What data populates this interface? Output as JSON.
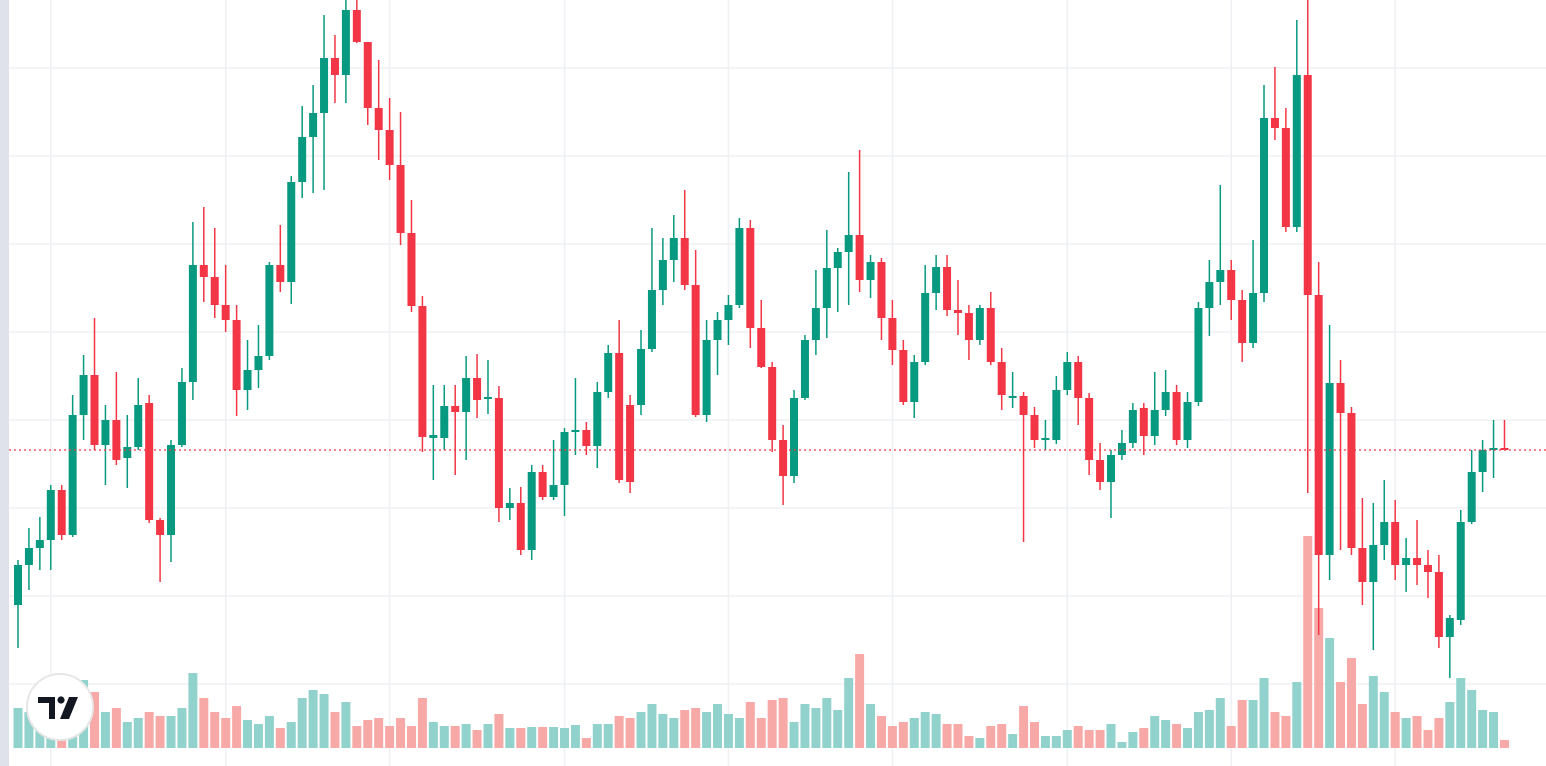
{
  "chart_data": {
    "type": "candlestick",
    "open": [
      161,
      201,
      218,
      226,
      276,
      231,
      351,
      391,
      321,
      346,
      308,
      319,
      363,
      246,
      231,
      321,
      384,
      501,
      489,
      461,
      446,
      376,
      396,
      410,
      501,
      484,
      584,
      629,
      653,
      708,
      691,
      756,
      724,
      658,
      636,
      601,
      533,
      460,
      328,
      328,
      360,
      354,
      388,
      367,
      368,
      258,
      263,
      216,
      294,
      269,
      281,
      334,
      336,
      320,
      374,
      413,
      361,
      361,
      417,
      476,
      506,
      528,
      481,
      351,
      426,
      446,
      461,
      538,
      438,
      399,
      326,
      290,
      368,
      426,
      458,
      498,
      514,
      531,
      486,
      504,
      448,
      416,
      364,
      404,
      473,
      499,
      456,
      453,
      426,
      458,
      404,
      368,
      370,
      351,
      326,
      326,
      376,
      404,
      368,
      306,
      284,
      311,
      323,
      358,
      330,
      356,
      374,
      326,
      364,
      458,
      484,
      496,
      466,
      423,
      473,
      648,
      638,
      539,
      691,
      471,
      211,
      383,
      353,
      218,
      184,
      221,
      244,
      201,
      208,
      201,
      194,
      129,
      146,
      244,
      294,
      316,
      318
    ],
    "high": [
      206,
      238,
      249,
      281,
      281,
      371,
      411,
      448,
      361,
      394,
      351,
      388,
      371,
      248,
      326,
      398,
      544,
      559,
      538,
      501,
      461,
      426,
      441,
      504,
      541,
      590,
      660,
      681,
      751,
      731,
      766,
      766,
      724,
      706,
      668,
      654,
      566,
      470,
      381,
      381,
      381,
      410,
      412,
      406,
      380,
      278,
      279,
      301,
      301,
      326,
      338,
      388,
      344,
      384,
      421,
      446,
      371,
      436,
      538,
      528,
      551,
      576,
      516,
      446,
      454,
      471,
      548,
      546,
      466,
      404,
      341,
      376,
      431,
      496,
      536,
      518,
      594,
      616,
      511,
      508,
      466,
      426,
      411,
      501,
      511,
      511,
      486,
      461,
      461,
      474,
      418,
      394,
      374,
      359,
      346,
      390,
      414,
      410,
      373,
      323,
      316,
      336,
      363,
      363,
      394,
      396,
      381,
      374,
      464,
      506,
      581,
      506,
      476,
      526,
      681,
      699,
      658,
      746,
      766,
      504,
      441,
      406,
      359,
      268,
      263,
      286,
      266,
      228,
      246,
      216,
      211,
      151,
      256,
      316,
      326,
      346,
      346
    ],
    "low": [
      118,
      176,
      196,
      196,
      226,
      229,
      326,
      316,
      281,
      301,
      278,
      316,
      243,
      184,
      204,
      319,
      366,
      464,
      448,
      434,
      350,
      356,
      378,
      406,
      474,
      462,
      568,
      573,
      576,
      663,
      663,
      723,
      641,
      606,
      586,
      521,
      454,
      314,
      286,
      316,
      291,
      306,
      348,
      352,
      244,
      246,
      211,
      206,
      266,
      266,
      250,
      311,
      311,
      298,
      368,
      283,
      273,
      351,
      414,
      461,
      484,
      476,
      349,
      344,
      391,
      421,
      458,
      418,
      398,
      314,
      261,
      283,
      366,
      411,
      428,
      454,
      461,
      474,
      468,
      426,
      401,
      361,
      348,
      401,
      456,
      450,
      431,
      406,
      421,
      401,
      356,
      358,
      224,
      318,
      316,
      322,
      371,
      341,
      291,
      276,
      248,
      306,
      318,
      311,
      321,
      350,
      321,
      318,
      360,
      430,
      461,
      446,
      404,
      418,
      464,
      626,
      534,
      534,
      273,
      131,
      186,
      216,
      211,
      161,
      116,
      206,
      186,
      174,
      181,
      168,
      118,
      88,
      141,
      242,
      274,
      288,
      316
    ],
    "close": [
      201,
      218,
      226,
      276,
      231,
      351,
      391,
      321,
      346,
      306,
      319,
      361,
      246,
      231,
      321,
      384,
      501,
      489,
      461,
      446,
      376,
      396,
      410,
      501,
      484,
      584,
      629,
      653,
      708,
      691,
      756,
      724,
      658,
      636,
      601,
      533,
      460,
      329,
      331,
      360,
      354,
      388,
      366,
      369,
      258,
      263,
      216,
      294,
      269,
      281,
      334,
      336,
      320,
      374,
      413,
      286,
      284,
      417,
      476,
      506,
      528,
      481,
      351,
      426,
      446,
      461,
      538,
      438,
      399,
      326,
      290,
      368,
      426,
      458,
      498,
      514,
      531,
      486,
      504,
      448,
      416,
      364,
      404,
      473,
      499,
      456,
      453,
      426,
      458,
      404,
      371,
      370,
      351,
      326,
      328,
      376,
      404,
      368,
      306,
      284,
      311,
      323,
      356,
      330,
      356,
      374,
      326,
      364,
      458,
      484,
      496,
      466,
      423,
      473,
      648,
      638,
      539,
      691,
      471,
      211,
      383,
      353,
      218,
      184,
      221,
      244,
      201,
      208,
      201,
      194,
      129,
      148,
      244,
      294,
      316,
      318,
      316
    ],
    "volume": [
      40,
      36,
      30,
      43,
      36,
      58,
      68,
      56,
      36,
      40,
      26,
      30,
      36,
      32,
      32,
      40,
      75,
      50,
      36,
      30,
      42,
      28,
      24,
      32,
      20,
      26,
      50,
      58,
      54,
      36,
      46,
      22,
      28,
      30,
      22,
      30,
      22,
      50,
      26,
      22,
      22,
      24,
      18,
      24,
      34,
      20,
      20,
      21,
      21,
      21,
      20,
      23,
      10,
      24,
      24,
      32,
      30,
      36,
      44,
      34,
      30,
      38,
      40,
      36,
      44,
      34,
      30,
      46,
      30,
      48,
      50,
      26,
      44,
      40,
      50,
      38,
      70,
      94,
      44,
      32,
      22,
      26,
      30,
      36,
      34,
      24,
      24,
      12,
      10,
      22,
      24,
      14,
      42,
      26,
      12,
      12,
      18,
      22,
      18,
      18,
      24,
      6,
      16,
      20,
      32,
      28,
      24,
      20,
      36,
      38,
      50,
      22,
      48,
      48,
      70,
      36,
      32,
      66,
      212,
      140,
      110,
      66,
      90,
      44,
      72,
      56,
      36,
      30,
      32,
      18,
      30,
      46,
      70,
      58,
      38,
      36,
      8
    ],
    "ylim": [
      0,
      766
    ],
    "yticks": [
      82,
      170,
      258,
      346,
      434,
      522,
      610,
      698
    ],
    "xticks": [
      3,
      19,
      34,
      50,
      65,
      80,
      96,
      111,
      126
    ],
    "grid": true,
    "up_color": "#089981",
    "down_color": "#f23645",
    "up_volume_color": "#92d2cc",
    "down_volume_color": "#f7a9a7"
  }
}
